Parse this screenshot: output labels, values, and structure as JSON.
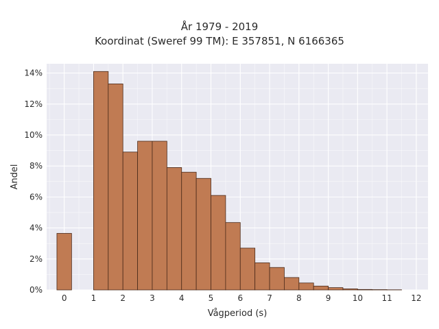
{
  "chart_data": {
    "type": "bar",
    "title_lines": [
      "År 1979 - 2019",
      "Koordinat (Sweref 99 TM): E 357851, N 6166365"
    ],
    "xlabel": "Vågperiod (s)",
    "ylabel": "Andel",
    "xlim": [
      -0.6,
      12.4
    ],
    "ylim": [
      0,
      14.6
    ],
    "x_ticks": [
      0,
      1,
      2,
      3,
      4,
      5,
      6,
      7,
      8,
      9,
      10,
      11,
      12
    ],
    "y_ticks": [
      0,
      2,
      4,
      6,
      8,
      10,
      12,
      14
    ],
    "y_tick_labels": [
      "0%",
      "2%",
      "4%",
      "6%",
      "8%",
      "10%",
      "12%",
      "14%"
    ],
    "bar_width": 0.5,
    "bars": [
      {
        "x0": -0.25,
        "value": 3.65
      },
      {
        "x0": 1.0,
        "value": 14.1
      },
      {
        "x0": 1.5,
        "value": 13.3
      },
      {
        "x0": 2.0,
        "value": 8.9
      },
      {
        "x0": 2.5,
        "value": 9.6
      },
      {
        "x0": 3.0,
        "value": 9.6
      },
      {
        "x0": 3.5,
        "value": 7.9
      },
      {
        "x0": 4.0,
        "value": 7.6
      },
      {
        "x0": 4.5,
        "value": 7.2
      },
      {
        "x0": 5.0,
        "value": 6.1
      },
      {
        "x0": 5.5,
        "value": 4.35
      },
      {
        "x0": 6.0,
        "value": 2.7
      },
      {
        "x0": 6.5,
        "value": 1.75
      },
      {
        "x0": 7.0,
        "value": 1.45
      },
      {
        "x0": 7.5,
        "value": 0.8
      },
      {
        "x0": 8.0,
        "value": 0.45
      },
      {
        "x0": 8.5,
        "value": 0.25
      },
      {
        "x0": 9.0,
        "value": 0.15
      },
      {
        "x0": 9.5,
        "value": 0.07
      },
      {
        "x0": 10.0,
        "value": 0.03
      },
      {
        "x0": 10.5,
        "value": 0.02
      },
      {
        "x0": 11.0,
        "value": 0.01
      }
    ],
    "grid": true,
    "colors": {
      "bar_fill": "#c07b53",
      "bar_stroke": "#4a2a1a",
      "plot_bg": "#eaeaf2",
      "grid": "#ffffff"
    }
  }
}
